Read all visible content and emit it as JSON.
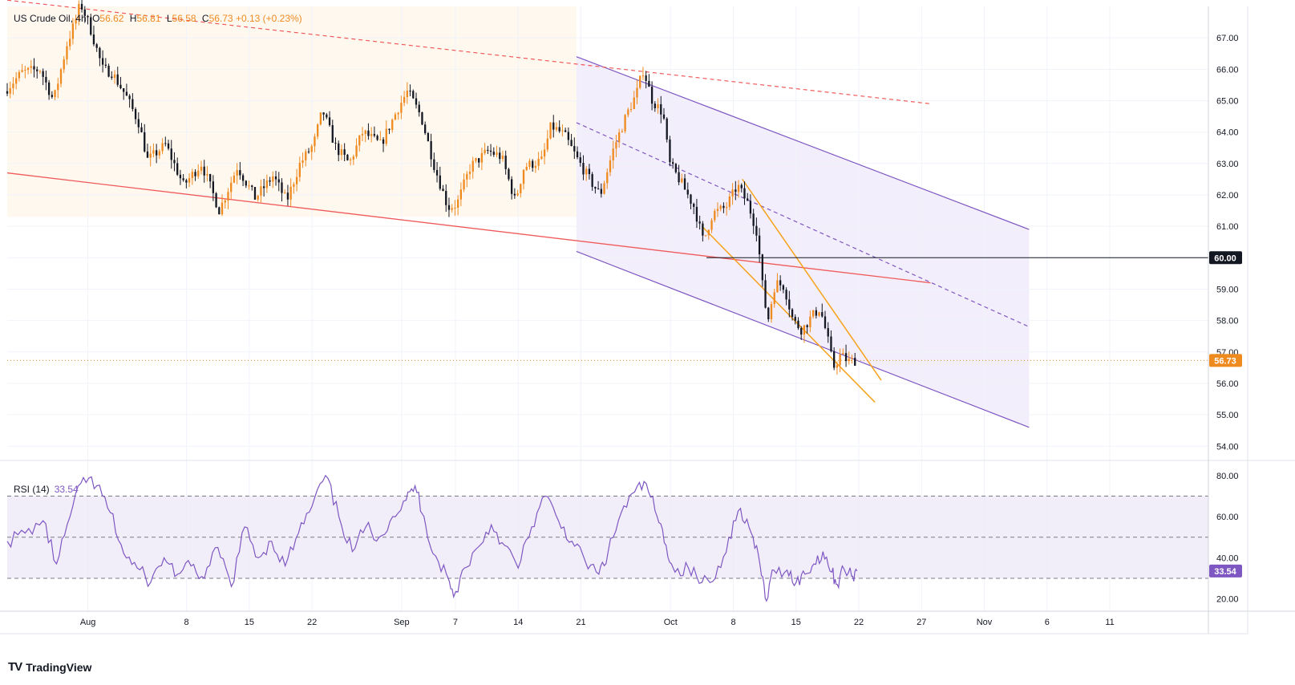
{
  "legend": {
    "symbol": "US Crude Oil",
    "interval": "4h",
    "open_label": "O",
    "open": "56.62",
    "high_label": "H",
    "high": "56.81",
    "low_label": "L",
    "low": "56.58",
    "close_label": "C",
    "close": "56.73",
    "change": "+0.13",
    "change_pct": "(+0.23%)"
  },
  "rsi_legend": {
    "label": "RSI (14)",
    "value": "33.54"
  },
  "branding": {
    "name": "TradingView",
    "logo_text": "TV"
  },
  "chart_data": [
    {
      "type": "candlestick",
      "title": "US Crude Oil, 4h",
      "y_range": [
        53.7,
        68.0
      ],
      "y_ticks": [
        "54.00",
        "55.00",
        "56.00",
        "57.00",
        "58.00",
        "59.00",
        "60.00",
        "61.00",
        "62.00",
        "63.00",
        "64.00",
        "65.00",
        "66.00",
        "67.00"
      ],
      "x_ticks": [
        {
          "day": -3,
          "label": "Aug"
        },
        {
          "day": 8,
          "label": "8"
        },
        {
          "day": 15,
          "label": "15"
        },
        {
          "day": 22,
          "label": "22"
        },
        {
          "day": 32,
          "label": "Sep"
        },
        {
          "day": 38,
          "label": "7"
        },
        {
          "day": 45,
          "label": "14"
        },
        {
          "day": 52,
          "label": "21"
        },
        {
          "day": 62,
          "label": "Oct"
        },
        {
          "day": 69,
          "label": "8"
        },
        {
          "day": 76,
          "label": "15"
        },
        {
          "day": 83,
          "label": "22"
        },
        {
          "day": 90,
          "label": "27"
        },
        {
          "day": 97,
          "label": "Nov"
        },
        {
          "day": 104,
          "label": "6"
        },
        {
          "day": 111,
          "label": "11"
        }
      ],
      "x_domain_days": [
        -12,
        122
      ],
      "colors": {
        "up": "#ef8a1f",
        "down": "#131722",
        "channel": "#7e57c2",
        "support": "#f05a5a",
        "wedge": "#f7a21b",
        "highlight_bg": "#fff8ef",
        "channel_bg": "#f3eefb"
      },
      "price_path": [
        {
          "d": -12,
          "p": 65.3
        },
        {
          "d": -10,
          "p": 65.9
        },
        {
          "d": -8,
          "p": 66.0
        },
        {
          "d": -6.5,
          "p": 65.0
        },
        {
          "d": -5,
          "p": 66.8
        },
        {
          "d": -4,
          "p": 67.6
        },
        {
          "d": -3.5,
          "p": 68.1
        },
        {
          "d": -2.5,
          "p": 67.4
        },
        {
          "d": -1,
          "p": 66.0
        },
        {
          "d": 0,
          "p": 65.9
        },
        {
          "d": 1.5,
          "p": 65.2
        },
        {
          "d": 3,
          "p": 64.3
        },
        {
          "d": 4,
          "p": 63.1
        },
        {
          "d": 6,
          "p": 63.6
        },
        {
          "d": 8,
          "p": 62.3
        },
        {
          "d": 10,
          "p": 63.0
        },
        {
          "d": 12,
          "p": 61.5
        },
        {
          "d": 14,
          "p": 62.9
        },
        {
          "d": 16,
          "p": 61.9
        },
        {
          "d": 18,
          "p": 62.6
        },
        {
          "d": 19.5,
          "p": 61.8
        },
        {
          "d": 21,
          "p": 63.0
        },
        {
          "d": 22.5,
          "p": 63.6
        },
        {
          "d": 23.5,
          "p": 64.7
        },
        {
          "d": 25,
          "p": 63.5
        },
        {
          "d": 26.5,
          "p": 63.0
        },
        {
          "d": 28,
          "p": 64.0
        },
        {
          "d": 30,
          "p": 63.6
        },
        {
          "d": 32,
          "p": 64.8
        },
        {
          "d": 33,
          "p": 65.3
        },
        {
          "d": 34.5,
          "p": 64.5
        },
        {
          "d": 36,
          "p": 62.9
        },
        {
          "d": 37.5,
          "p": 61.6
        },
        {
          "d": 38.5,
          "p": 61.7
        },
        {
          "d": 40,
          "p": 62.9
        },
        {
          "d": 42,
          "p": 63.4
        },
        {
          "d": 43.5,
          "p": 63.2
        },
        {
          "d": 45,
          "p": 61.8
        },
        {
          "d": 46,
          "p": 62.9
        },
        {
          "d": 48,
          "p": 63.1
        },
        {
          "d": 49,
          "p": 64.2
        },
        {
          "d": 50.5,
          "p": 63.9
        },
        {
          "d": 52,
          "p": 63.1
        },
        {
          "d": 53.5,
          "p": 62.4
        },
        {
          "d": 54.5,
          "p": 62.0
        },
        {
          "d": 56,
          "p": 63.5
        },
        {
          "d": 57.5,
          "p": 64.6
        },
        {
          "d": 58.5,
          "p": 65.2
        },
        {
          "d": 59.3,
          "p": 66.0
        },
        {
          "d": 60.3,
          "p": 65.0
        },
        {
          "d": 61.5,
          "p": 64.6
        },
        {
          "d": 62.2,
          "p": 63.0
        },
        {
          "d": 63.5,
          "p": 62.4
        },
        {
          "d": 65,
          "p": 61.6
        },
        {
          "d": 66,
          "p": 60.5
        },
        {
          "d": 67,
          "p": 61.4
        },
        {
          "d": 68.5,
          "p": 61.6
        },
        {
          "d": 69.8,
          "p": 62.3
        },
        {
          "d": 71,
          "p": 61.7
        },
        {
          "d": 72,
          "p": 60.8
        },
        {
          "d": 72.7,
          "p": 58.8
        },
        {
          "d": 73.2,
          "p": 58.0
        },
        {
          "d": 74,
          "p": 59.2
        },
        {
          "d": 75,
          "p": 59.1
        },
        {
          "d": 76,
          "p": 58.0
        },
        {
          "d": 77,
          "p": 57.7
        },
        {
          "d": 78,
          "p": 58.1
        },
        {
          "d": 79,
          "p": 58.4
        },
        {
          "d": 79.8,
          "p": 57.5
        },
        {
          "d": 80.5,
          "p": 56.5
        },
        {
          "d": 81.3,
          "p": 56.9
        },
        {
          "d": 82.2,
          "p": 56.7
        },
        {
          "d": 82.8,
          "p": 56.73
        }
      ],
      "last_price": "56.73",
      "marked_level": "60.00",
      "trendlines": [
        {
          "name": "channel-upper",
          "style": "solid",
          "from": {
            "d": 51.5,
            "p": 66.4
          },
          "to": {
            "d": 102,
            "p": 60.9
          }
        },
        {
          "name": "channel-mid",
          "style": "dashed",
          "from": {
            "d": 51.5,
            "p": 64.3
          },
          "to": {
            "d": 102,
            "p": 57.8
          }
        },
        {
          "name": "channel-lower",
          "style": "solid",
          "from": {
            "d": 51.5,
            "p": 60.2
          },
          "to": {
            "d": 102,
            "p": 54.6
          }
        },
        {
          "name": "long-resistance",
          "style": "dashed-red",
          "from": {
            "d": -12,
            "p": 68.2
          },
          "to": {
            "d": 91,
            "p": 64.9
          }
        },
        {
          "name": "long-support",
          "style": "solid-red",
          "from": {
            "d": -12,
            "p": 62.7
          },
          "to": {
            "d": 91,
            "p": 59.2
          }
        },
        {
          "name": "wedge-upper",
          "style": "orange",
          "from": {
            "d": 70,
            "p": 62.5
          },
          "to": {
            "d": 85.5,
            "p": 56.1
          }
        },
        {
          "name": "wedge-lower",
          "style": "orange",
          "from": {
            "d": 65.5,
            "p": 61.0
          },
          "to": {
            "d": 84.8,
            "p": 55.4
          }
        }
      ]
    },
    {
      "type": "line",
      "title": "RSI (14)",
      "y_range": [
        14,
        85
      ],
      "y_ticks": [
        "20.00",
        "40.00",
        "60.00",
        "80.00"
      ],
      "bands": {
        "upper": 70,
        "middle": 50,
        "lower": 30
      },
      "last_value": "33.54",
      "values": [
        {
          "d": -12,
          "v": 48
        },
        {
          "d": -10,
          "v": 52
        },
        {
          "d": -8,
          "v": 58
        },
        {
          "d": -6.5,
          "v": 37
        },
        {
          "d": -5,
          "v": 60
        },
        {
          "d": -3.5,
          "v": 79
        },
        {
          "d": -2,
          "v": 75
        },
        {
          "d": -0.5,
          "v": 62
        },
        {
          "d": 1,
          "v": 42
        },
        {
          "d": 2.5,
          "v": 35
        },
        {
          "d": 4,
          "v": 28
        },
        {
          "d": 5.5,
          "v": 40
        },
        {
          "d": 7,
          "v": 32
        },
        {
          "d": 8.5,
          "v": 36
        },
        {
          "d": 10,
          "v": 30
        },
        {
          "d": 11.5,
          "v": 45
        },
        {
          "d": 13,
          "v": 26
        },
        {
          "d": 14.5,
          "v": 55
        },
        {
          "d": 16,
          "v": 40
        },
        {
          "d": 17.5,
          "v": 48
        },
        {
          "d": 19,
          "v": 36
        },
        {
          "d": 20.5,
          "v": 52
        },
        {
          "d": 22,
          "v": 65
        },
        {
          "d": 23.5,
          "v": 80
        },
        {
          "d": 25,
          "v": 60
        },
        {
          "d": 26.5,
          "v": 43
        },
        {
          "d": 28,
          "v": 55
        },
        {
          "d": 29.5,
          "v": 50
        },
        {
          "d": 31,
          "v": 60
        },
        {
          "d": 32.5,
          "v": 68
        },
        {
          "d": 33.5,
          "v": 75
        },
        {
          "d": 34.5,
          "v": 60
        },
        {
          "d": 35.5,
          "v": 42
        },
        {
          "d": 37,
          "v": 32
        },
        {
          "d": 37.8,
          "v": 21
        },
        {
          "d": 39,
          "v": 35
        },
        {
          "d": 40.5,
          "v": 45
        },
        {
          "d": 42,
          "v": 56
        },
        {
          "d": 43.5,
          "v": 46
        },
        {
          "d": 45,
          "v": 35
        },
        {
          "d": 46.5,
          "v": 55
        },
        {
          "d": 48,
          "v": 70
        },
        {
          "d": 49.5,
          "v": 58
        },
        {
          "d": 51,
          "v": 48
        },
        {
          "d": 52.5,
          "v": 38
        },
        {
          "d": 54,
          "v": 32
        },
        {
          "d": 55,
          "v": 42
        },
        {
          "d": 56.5,
          "v": 62
        },
        {
          "d": 58,
          "v": 72
        },
        {
          "d": 59.3,
          "v": 76
        },
        {
          "d": 60.5,
          "v": 60
        },
        {
          "d": 61.5,
          "v": 46
        },
        {
          "d": 62.5,
          "v": 33
        },
        {
          "d": 64,
          "v": 35
        },
        {
          "d": 65.5,
          "v": 28
        },
        {
          "d": 67,
          "v": 30
        },
        {
          "d": 68.5,
          "v": 50
        },
        {
          "d": 69.8,
          "v": 64
        },
        {
          "d": 71,
          "v": 52
        },
        {
          "d": 72,
          "v": 36
        },
        {
          "d": 72.7,
          "v": 19
        },
        {
          "d": 73.5,
          "v": 34
        },
        {
          "d": 75,
          "v": 34
        },
        {
          "d": 76,
          "v": 28
        },
        {
          "d": 77,
          "v": 32
        },
        {
          "d": 78,
          "v": 37
        },
        {
          "d": 79,
          "v": 43
        },
        {
          "d": 80,
          "v": 33
        },
        {
          "d": 80.6,
          "v": 27
        },
        {
          "d": 81.3,
          "v": 35
        },
        {
          "d": 82.2,
          "v": 31
        },
        {
          "d": 82.8,
          "v": 33.54
        }
      ]
    }
  ]
}
